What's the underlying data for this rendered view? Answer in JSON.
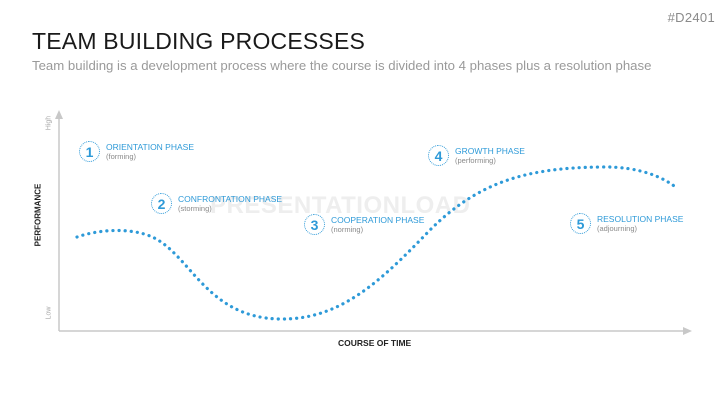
{
  "slide_code": "#D2401",
  "title": "TEAM BUILDING PROCESSES",
  "subtitle": "Team building is a development process where the course is divided into 4 phases plus a resolution phase",
  "watermark": "PRESENTATIONLOAD",
  "y_axis": {
    "label": "PERFORMANCE",
    "high": "High",
    "low": "Low"
  },
  "x_axis": {
    "label": "COURSE OF TIME"
  },
  "phases": [
    {
      "number": "1",
      "name": "ORIENTATION PHASE",
      "sub": "(forming)"
    },
    {
      "number": "2",
      "name": "CONFRONTATION PHASE",
      "sub": "(storming)"
    },
    {
      "number": "3",
      "name": "COOPERATION PHASE",
      "sub": "(norming)"
    },
    {
      "number": "4",
      "name": "GROWTH PHASE",
      "sub": "(performing)"
    },
    {
      "number": "5",
      "name": "RESOLUTION PHASE",
      "sub": "(adjourning)"
    }
  ],
  "colors": {
    "accent": "#2e9ad8",
    "axis": "#c8c8c8"
  }
}
